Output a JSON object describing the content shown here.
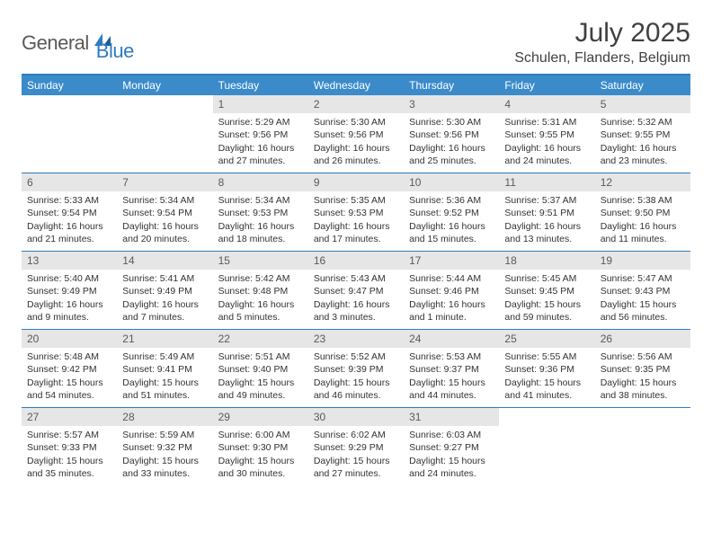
{
  "logo": {
    "text1": "General",
    "text2": "Blue",
    "color1": "#5a5a5a",
    "color2": "#2e7cc0"
  },
  "title": "July 2025",
  "location": "Schulen, Flanders, Belgium",
  "colors": {
    "header_bg": "#3b8bca",
    "border": "#2e7cc0",
    "daynum_bg": "#e6e6e6",
    "text": "#333333",
    "title_text": "#404040"
  },
  "typography": {
    "title_fontsize": 30,
    "location_fontsize": 16,
    "dayheader_fontsize": 12,
    "daynum_fontsize": 12,
    "body_fontsize": 10.5
  },
  "layout": {
    "columns": 7,
    "rows": 5,
    "first_day_column": 2
  },
  "day_headers": [
    "Sunday",
    "Monday",
    "Tuesday",
    "Wednesday",
    "Thursday",
    "Friday",
    "Saturday"
  ],
  "days": [
    {
      "n": 1,
      "sunrise": "5:29 AM",
      "sunset": "9:56 PM",
      "daylight": "16 hours and 27 minutes."
    },
    {
      "n": 2,
      "sunrise": "5:30 AM",
      "sunset": "9:56 PM",
      "daylight": "16 hours and 26 minutes."
    },
    {
      "n": 3,
      "sunrise": "5:30 AM",
      "sunset": "9:56 PM",
      "daylight": "16 hours and 25 minutes."
    },
    {
      "n": 4,
      "sunrise": "5:31 AM",
      "sunset": "9:55 PM",
      "daylight": "16 hours and 24 minutes."
    },
    {
      "n": 5,
      "sunrise": "5:32 AM",
      "sunset": "9:55 PM",
      "daylight": "16 hours and 23 minutes."
    },
    {
      "n": 6,
      "sunrise": "5:33 AM",
      "sunset": "9:54 PM",
      "daylight": "16 hours and 21 minutes."
    },
    {
      "n": 7,
      "sunrise": "5:34 AM",
      "sunset": "9:54 PM",
      "daylight": "16 hours and 20 minutes."
    },
    {
      "n": 8,
      "sunrise": "5:34 AM",
      "sunset": "9:53 PM",
      "daylight": "16 hours and 18 minutes."
    },
    {
      "n": 9,
      "sunrise": "5:35 AM",
      "sunset": "9:53 PM",
      "daylight": "16 hours and 17 minutes."
    },
    {
      "n": 10,
      "sunrise": "5:36 AM",
      "sunset": "9:52 PM",
      "daylight": "16 hours and 15 minutes."
    },
    {
      "n": 11,
      "sunrise": "5:37 AM",
      "sunset": "9:51 PM",
      "daylight": "16 hours and 13 minutes."
    },
    {
      "n": 12,
      "sunrise": "5:38 AM",
      "sunset": "9:50 PM",
      "daylight": "16 hours and 11 minutes."
    },
    {
      "n": 13,
      "sunrise": "5:40 AM",
      "sunset": "9:49 PM",
      "daylight": "16 hours and 9 minutes."
    },
    {
      "n": 14,
      "sunrise": "5:41 AM",
      "sunset": "9:49 PM",
      "daylight": "16 hours and 7 minutes."
    },
    {
      "n": 15,
      "sunrise": "5:42 AM",
      "sunset": "9:48 PM",
      "daylight": "16 hours and 5 minutes."
    },
    {
      "n": 16,
      "sunrise": "5:43 AM",
      "sunset": "9:47 PM",
      "daylight": "16 hours and 3 minutes."
    },
    {
      "n": 17,
      "sunrise": "5:44 AM",
      "sunset": "9:46 PM",
      "daylight": "16 hours and 1 minute."
    },
    {
      "n": 18,
      "sunrise": "5:45 AM",
      "sunset": "9:45 PM",
      "daylight": "15 hours and 59 minutes."
    },
    {
      "n": 19,
      "sunrise": "5:47 AM",
      "sunset": "9:43 PM",
      "daylight": "15 hours and 56 minutes."
    },
    {
      "n": 20,
      "sunrise": "5:48 AM",
      "sunset": "9:42 PM",
      "daylight": "15 hours and 54 minutes."
    },
    {
      "n": 21,
      "sunrise": "5:49 AM",
      "sunset": "9:41 PM",
      "daylight": "15 hours and 51 minutes."
    },
    {
      "n": 22,
      "sunrise": "5:51 AM",
      "sunset": "9:40 PM",
      "daylight": "15 hours and 49 minutes."
    },
    {
      "n": 23,
      "sunrise": "5:52 AM",
      "sunset": "9:39 PM",
      "daylight": "15 hours and 46 minutes."
    },
    {
      "n": 24,
      "sunrise": "5:53 AM",
      "sunset": "9:37 PM",
      "daylight": "15 hours and 44 minutes."
    },
    {
      "n": 25,
      "sunrise": "5:55 AM",
      "sunset": "9:36 PM",
      "daylight": "15 hours and 41 minutes."
    },
    {
      "n": 26,
      "sunrise": "5:56 AM",
      "sunset": "9:35 PM",
      "daylight": "15 hours and 38 minutes."
    },
    {
      "n": 27,
      "sunrise": "5:57 AM",
      "sunset": "9:33 PM",
      "daylight": "15 hours and 35 minutes."
    },
    {
      "n": 28,
      "sunrise": "5:59 AM",
      "sunset": "9:32 PM",
      "daylight": "15 hours and 33 minutes."
    },
    {
      "n": 29,
      "sunrise": "6:00 AM",
      "sunset": "9:30 PM",
      "daylight": "15 hours and 30 minutes."
    },
    {
      "n": 30,
      "sunrise": "6:02 AM",
      "sunset": "9:29 PM",
      "daylight": "15 hours and 27 minutes."
    },
    {
      "n": 31,
      "sunrise": "6:03 AM",
      "sunset": "9:27 PM",
      "daylight": "15 hours and 24 minutes."
    }
  ],
  "labels": {
    "sunrise": "Sunrise:",
    "sunset": "Sunset:",
    "daylight": "Daylight:"
  }
}
